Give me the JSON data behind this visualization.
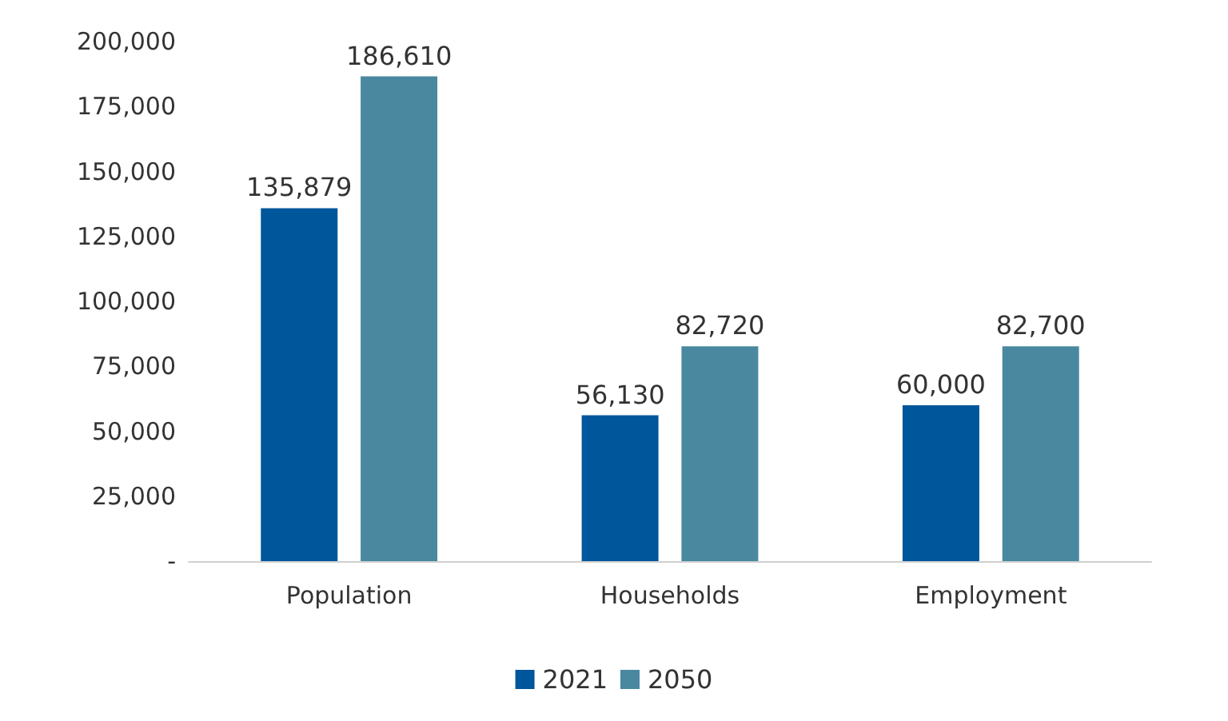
{
  "chart_data": {
    "type": "bar",
    "categories": [
      "Population",
      "Households",
      "Employment"
    ],
    "series": [
      {
        "name": "2021",
        "color": "#00569b",
        "values": [
          135879,
          56130,
          60000
        ],
        "value_labels": [
          "135,879",
          "56,130",
          "60,000"
        ]
      },
      {
        "name": "2050",
        "color": "#4a88a0",
        "values": [
          186610,
          82720,
          82700
        ],
        "value_labels": [
          "186,610",
          "82,720",
          "82,700"
        ]
      }
    ],
    "ylim": [
      0,
      200000
    ],
    "yticks": [
      {
        "value": 0,
        "label": "-"
      },
      {
        "value": 25000,
        "label": "25,000"
      },
      {
        "value": 50000,
        "label": "50,000"
      },
      {
        "value": 75000,
        "label": "75,000"
      },
      {
        "value": 100000,
        "label": "100,000"
      },
      {
        "value": 125000,
        "label": "125,000"
      },
      {
        "value": 150000,
        "label": "150,000"
      },
      {
        "value": 175000,
        "label": "175,000"
      },
      {
        "value": 200000,
        "label": "200,000"
      }
    ],
    "legend": "bottom",
    "grid": false
  }
}
